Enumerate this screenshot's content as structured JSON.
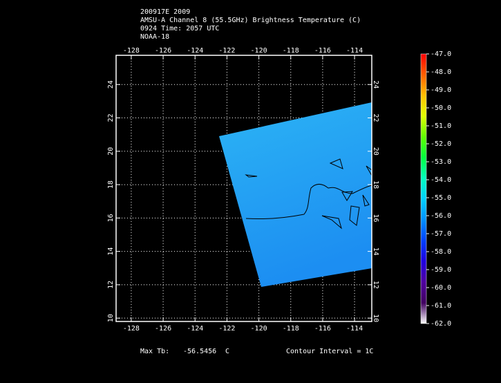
{
  "title": [
    "200917E 2009",
    "AMSU-A Channel 8 (55.5GHz) Brightness Temperature (C)",
    "0924 Time: 2057 UTC",
    "NOAA-18"
  ],
  "map": {
    "xlim": [
      -128.95,
      -112.92
    ],
    "ylim": [
      9.8,
      25.75
    ],
    "xticks": [
      -128,
      -126,
      -124,
      -122,
      -120,
      -118,
      -116,
      -114
    ],
    "yticks": [
      10,
      12,
      14,
      16,
      18,
      20,
      22,
      24
    ],
    "grid": true
  },
  "colorbar": {
    "ticks": [
      {
        "value": -47,
        "label": "-47.0"
      },
      {
        "value": -48,
        "label": "-48.0"
      },
      {
        "value": -49,
        "label": "-49.0"
      },
      {
        "value": -50,
        "label": "-50.0"
      },
      {
        "value": -51,
        "label": "-51.0"
      },
      {
        "value": -52,
        "label": "-52.0"
      },
      {
        "value": -53,
        "label": "-53.0"
      },
      {
        "value": -54,
        "label": "-54.0"
      },
      {
        "value": -55,
        "label": "-55.0"
      },
      {
        "value": -56,
        "label": "-56.0"
      },
      {
        "value": -57,
        "label": "-57.0"
      },
      {
        "value": -58,
        "label": "-58.0"
      },
      {
        "value": -59,
        "label": "-59.0"
      },
      {
        "value": -60,
        "label": "-60.0"
      },
      {
        "value": -61,
        "label": "-61.0"
      },
      {
        "value": -62,
        "label": "-62.0"
      }
    ],
    "colors": [
      "#ff0000",
      "#ff6000",
      "#ffc000",
      "#e0ff00",
      "#60ff00",
      "#00ff40",
      "#00ffc0",
      "#00d0ff",
      "#0090ff",
      "#0040ff",
      "#2000e0",
      "#5000a0",
      "#400060",
      "#ffffff"
    ]
  },
  "footer": {
    "max_label": "Max Tb:",
    "max_value": -56.5456,
    "unit": "C",
    "contour": "Contour Interval = 1C"
  }
}
